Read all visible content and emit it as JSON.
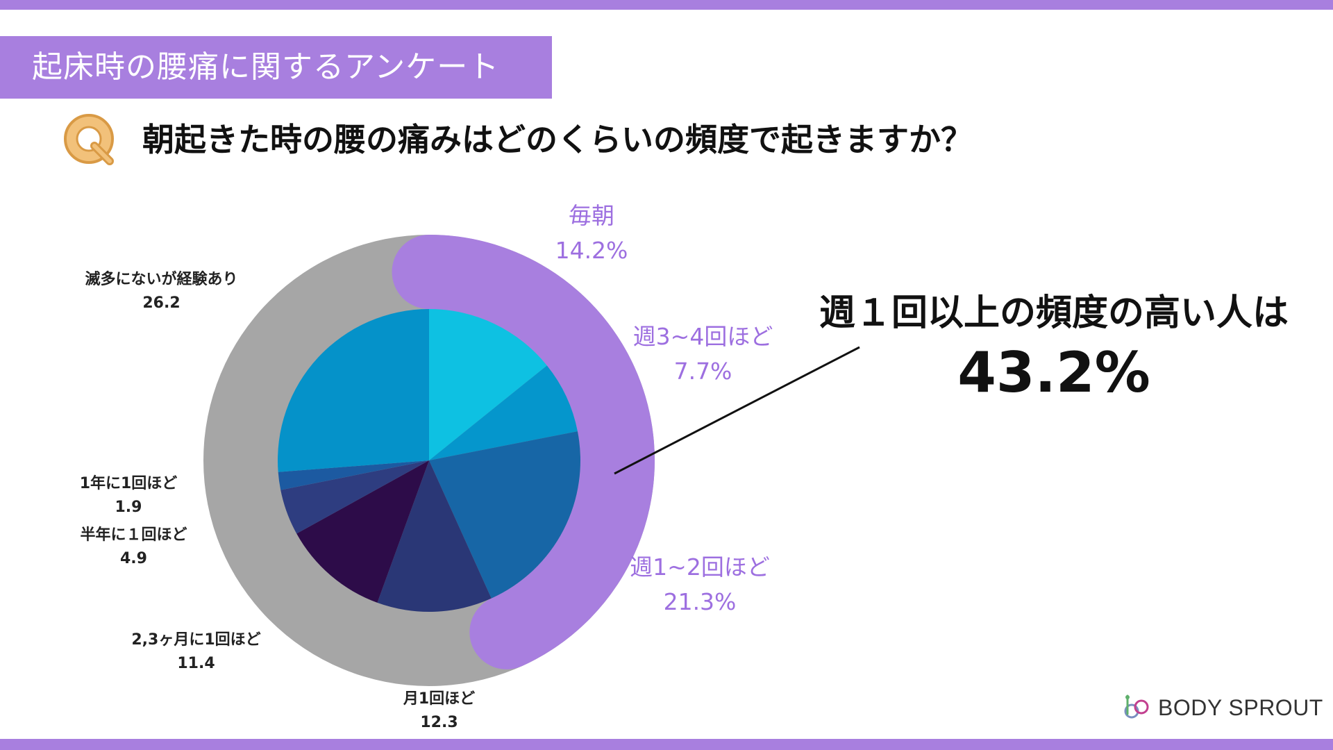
{
  "header": {
    "banner_title": "起床時の腰痛に関するアンケート",
    "question": "朝起きた時の腰の痛みはどのくらいの頻度で起きますか？"
  },
  "colors": {
    "accent": "#a87fdf",
    "ring_gray": "#a6a6a6",
    "label_purple": "#9d6fe0"
  },
  "chart_data": {
    "type": "pie",
    "categories": [
      "毎朝",
      "週3~4回ほど",
      "週1~2回ほど",
      "月1回ほど",
      "2,3ヶ月に1回ほど",
      "半年に１回ほど",
      "1年に1回ほど",
      "滅多にないが経験あり"
    ],
    "values": [
      14.2,
      7.7,
      21.3,
      12.3,
      11.4,
      4.9,
      1.9,
      26.2
    ],
    "slice_colors": [
      "#0ec1e2",
      "#0596cc",
      "#1766a6",
      "#2a3776",
      "#2d0c49",
      "#2e3d80",
      "#1c5aa1",
      "#0592c9"
    ],
    "labels": [
      {
        "name": "毎朝",
        "value": "14.2%"
      },
      {
        "name": "週3~4回ほど",
        "value": "7.7%"
      },
      {
        "name": "週1~2回ほど",
        "value": "21.3%"
      },
      {
        "name": "月1回ほど",
        "value": "12.3"
      },
      {
        "name": "2,3ヶ月に1回ほど",
        "value": "11.4"
      },
      {
        "name": "半年に１回ほど",
        "value": "4.9"
      },
      {
        "name": "1年に1回ほど",
        "value": "1.9"
      },
      {
        "name": "滅多にないが経験あり",
        "value": "26.2"
      }
    ],
    "highlight": {
      "text": "週１回以上の頻度の高い人は",
      "value": "43.2%",
      "share": 43.2
    }
  },
  "logo": {
    "text": "BODY SPROUT"
  }
}
